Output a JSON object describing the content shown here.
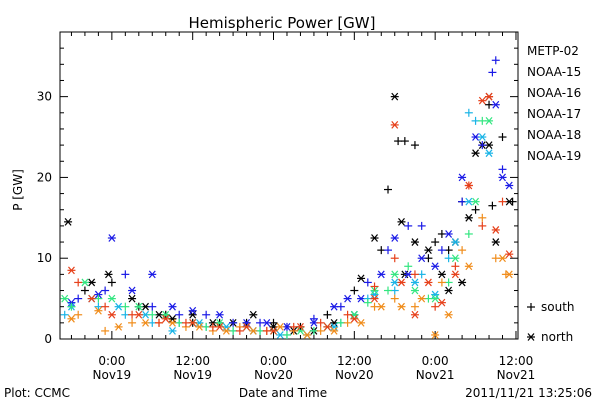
{
  "footer": {
    "plot_credit": "Plot: CCMC",
    "timestamp": "2011/11/21  13:25:06"
  },
  "chart_data": {
    "type": "scatter",
    "title": "Hemispheric Power [GW]",
    "xlabel": "Date and Time",
    "ylabel": "P [GW]",
    "x_unit": "hours since 2011/11/18 00:00",
    "xlim": [
      16.3,
      84.3
    ],
    "ylim": [
      0,
      38
    ],
    "y_ticks": [
      0,
      10,
      20,
      30
    ],
    "x_ticks": [
      {
        "x": 24,
        "top": "0:00",
        "bottom": "Nov19"
      },
      {
        "x": 36,
        "top": "12:00",
        "bottom": "Nov19"
      },
      {
        "x": 48,
        "top": "0:00",
        "bottom": "Nov20"
      },
      {
        "x": 60,
        "top": "12:00",
        "bottom": "Nov20"
      },
      {
        "x": 72,
        "top": "0:00",
        "bottom": "Nov21"
      },
      {
        "x": 84,
        "top": "12:00",
        "bottom": "Nov21"
      }
    ],
    "symbol_legend": [
      {
        "symbol": "+",
        "label": "south"
      },
      {
        "symbol": "*",
        "label": "north"
      }
    ],
    "series": [
      {
        "name": "METP-02",
        "color": "#000000",
        "north": [
          [
            17.5,
            14.5
          ],
          [
            21,
            7
          ],
          [
            23.5,
            8
          ],
          [
            27,
            5
          ],
          [
            29,
            4
          ],
          [
            31,
            3
          ],
          [
            33,
            2.5
          ],
          [
            36,
            3
          ],
          [
            39,
            2
          ],
          [
            42,
            2
          ],
          [
            45,
            3
          ],
          [
            48,
            1.5
          ],
          [
            51,
            1
          ],
          [
            54,
            1
          ],
          [
            57,
            2
          ],
          [
            60,
            3
          ],
          [
            61,
            7.5
          ],
          [
            63,
            12.5
          ],
          [
            66,
            30
          ],
          [
            67,
            14.5
          ],
          [
            69,
            12
          ],
          [
            71,
            11
          ],
          [
            73,
            8
          ],
          [
            75,
            12
          ],
          [
            77,
            15
          ],
          [
            78,
            23
          ],
          [
            79,
            24
          ],
          [
            80,
            24
          ],
          [
            81,
            12
          ],
          [
            83,
            17
          ],
          [
            67.5,
            8
          ],
          [
            74,
            6
          ],
          [
            76,
            7
          ]
        ],
        "south": [
          [
            20,
            6
          ],
          [
            24,
            7
          ],
          [
            28,
            4
          ],
          [
            32,
            3
          ],
          [
            36,
            2
          ],
          [
            40,
            2
          ],
          [
            44,
            2
          ],
          [
            48,
            2
          ],
          [
            52,
            1.5
          ],
          [
            56,
            3
          ],
          [
            60,
            6
          ],
          [
            64,
            11
          ],
          [
            65,
            18.5
          ],
          [
            66.5,
            24.5
          ],
          [
            67.5,
            24.5
          ],
          [
            69,
            24
          ],
          [
            71,
            10
          ],
          [
            72,
            12
          ],
          [
            73,
            13
          ],
          [
            74,
            11
          ],
          [
            76,
            17
          ],
          [
            78,
            16
          ],
          [
            80,
            29
          ],
          [
            82,
            25
          ],
          [
            80.5,
            16.5
          ],
          [
            83.5,
            17
          ]
        ]
      },
      {
        "name": "NOAA-15",
        "color": "#1a1ae6",
        "north": [
          [
            18,
            4.5
          ],
          [
            22,
            5.5
          ],
          [
            24,
            12.5
          ],
          [
            27,
            6
          ],
          [
            30,
            8
          ],
          [
            33,
            4
          ],
          [
            36,
            3.5
          ],
          [
            40,
            3
          ],
          [
            44,
            2
          ],
          [
            47,
            2
          ],
          [
            50,
            1.5
          ],
          [
            54,
            2
          ],
          [
            57,
            4
          ],
          [
            59,
            5
          ],
          [
            61,
            5
          ],
          [
            64,
            8
          ],
          [
            66,
            12.5
          ],
          [
            68,
            8
          ],
          [
            70,
            10
          ],
          [
            72,
            9
          ],
          [
            74,
            13
          ],
          [
            76,
            20
          ],
          [
            78,
            25
          ],
          [
            80,
            30
          ],
          [
            81,
            29
          ],
          [
            82,
            20
          ],
          [
            83,
            19
          ]
        ],
        "south": [
          [
            19,
            5
          ],
          [
            23,
            6
          ],
          [
            26,
            8
          ],
          [
            30,
            4
          ],
          [
            34,
            3
          ],
          [
            38,
            3
          ],
          [
            42,
            2
          ],
          [
            46,
            2
          ],
          [
            50,
            1.5
          ],
          [
            54,
            2.5
          ],
          [
            58,
            4
          ],
          [
            62,
            7
          ],
          [
            65,
            11
          ],
          [
            68,
            14
          ],
          [
            70,
            14
          ],
          [
            73,
            11
          ],
          [
            76,
            17
          ],
          [
            79,
            24
          ],
          [
            80.5,
            33
          ],
          [
            81,
            34.5
          ],
          [
            82,
            21
          ]
        ]
      },
      {
        "name": "NOAA-16",
        "color": "#1ab4e6",
        "north": [
          [
            18,
            4
          ],
          [
            21,
            5
          ],
          [
            25,
            4
          ],
          [
            29,
            3
          ],
          [
            33,
            1
          ],
          [
            37,
            2
          ],
          [
            41,
            1.5
          ],
          [
            45,
            1
          ],
          [
            49,
            0.5
          ],
          [
            53,
            0.5
          ],
          [
            57,
            1.5
          ],
          [
            60,
            3
          ],
          [
            63,
            5.5
          ],
          [
            66,
            7
          ],
          [
            69,
            7
          ],
          [
            72,
            5.5
          ],
          [
            75,
            12
          ],
          [
            77,
            17
          ],
          [
            79,
            25
          ],
          [
            80,
            23
          ]
        ],
        "south": [
          [
            17,
            3
          ],
          [
            22,
            4
          ],
          [
            26,
            3
          ],
          [
            30,
            2
          ],
          [
            34,
            2
          ],
          [
            38,
            1.5
          ],
          [
            42,
            1
          ],
          [
            46,
            1
          ],
          [
            50,
            0.5
          ],
          [
            54,
            1
          ],
          [
            58,
            2
          ],
          [
            62,
            5
          ],
          [
            66,
            6
          ],
          [
            70,
            8
          ],
          [
            74,
            10
          ],
          [
            77,
            28
          ],
          [
            78,
            27
          ]
        ]
      },
      {
        "name": "NOAA-17",
        "color": "#33e680",
        "north": [
          [
            17,
            5
          ],
          [
            20,
            7
          ],
          [
            24,
            5
          ],
          [
            28,
            4
          ],
          [
            32,
            3
          ],
          [
            36,
            2
          ],
          [
            40,
            2
          ],
          [
            44,
            1.5
          ],
          [
            48,
            1
          ],
          [
            52,
            1
          ],
          [
            56,
            1.5
          ],
          [
            60,
            3
          ],
          [
            63,
            6
          ],
          [
            66,
            8
          ],
          [
            69,
            6
          ],
          [
            72,
            5
          ],
          [
            75,
            10
          ],
          [
            78,
            17
          ],
          [
            80,
            27
          ]
        ],
        "south": [
          [
            18,
            4
          ],
          [
            22,
            5
          ],
          [
            26,
            4
          ],
          [
            30,
            3
          ],
          [
            34,
            2
          ],
          [
            38,
            1.5
          ],
          [
            42,
            1
          ],
          [
            46,
            1
          ],
          [
            50,
            0.5
          ],
          [
            54,
            1
          ],
          [
            58,
            2
          ],
          [
            62,
            4.5
          ],
          [
            65,
            6
          ],
          [
            68,
            9
          ],
          [
            71,
            5
          ],
          [
            74,
            7
          ],
          [
            77,
            13
          ],
          [
            79,
            27
          ]
        ]
      },
      {
        "name": "NOAA-18",
        "color": "#f08c1a",
        "north": [
          [
            18,
            2.5
          ],
          [
            22,
            3.5
          ],
          [
            25,
            1.5
          ],
          [
            29,
            2
          ],
          [
            33,
            2
          ],
          [
            37,
            1.5
          ],
          [
            41,
            1
          ],
          [
            45,
            1
          ],
          [
            49,
            1.5
          ],
          [
            53,
            0.5
          ],
          [
            57,
            1
          ],
          [
            61,
            2
          ],
          [
            64,
            4
          ],
          [
            67,
            4
          ],
          [
            70,
            5
          ],
          [
            72,
            0.5
          ],
          [
            74,
            3
          ],
          [
            77,
            9
          ],
          [
            80,
            30
          ],
          [
            82,
            10
          ],
          [
            83,
            8
          ]
        ],
        "south": [
          [
            19,
            3
          ],
          [
            23,
            1
          ],
          [
            27,
            2
          ],
          [
            31,
            2
          ],
          [
            35,
            1.5
          ],
          [
            39,
            1
          ],
          [
            43,
            1.5
          ],
          [
            47,
            1
          ],
          [
            51,
            1
          ],
          [
            55,
            1
          ],
          [
            59,
            2
          ],
          [
            63,
            4
          ],
          [
            66,
            5
          ],
          [
            69,
            4
          ],
          [
            73,
            7
          ],
          [
            76,
            11
          ],
          [
            79,
            15
          ],
          [
            81,
            10
          ],
          [
            82.5,
            8
          ]
        ]
      },
      {
        "name": "NOAA-19",
        "color": "#e6401a",
        "north": [
          [
            18,
            8.5
          ],
          [
            21,
            5
          ],
          [
            24,
            3
          ],
          [
            28,
            3
          ],
          [
            32,
            2.5
          ],
          [
            36,
            2
          ],
          [
            40,
            1.5
          ],
          [
            44,
            1.5
          ],
          [
            48,
            1
          ],
          [
            52,
            1.5
          ],
          [
            56,
            1.5
          ],
          [
            60,
            2.5
          ],
          [
            63,
            5
          ],
          [
            66,
            26.5
          ],
          [
            67,
            7
          ],
          [
            69,
            3
          ],
          [
            71,
            7
          ],
          [
            73,
            4.5
          ],
          [
            75,
            8
          ],
          [
            77,
            19
          ],
          [
            79,
            29.5
          ],
          [
            80,
            30
          ],
          [
            81,
            13.5
          ],
          [
            83,
            10.5
          ]
        ],
        "south": [
          [
            19,
            7
          ],
          [
            23,
            4
          ],
          [
            27,
            3
          ],
          [
            31,
            2
          ],
          [
            35,
            2
          ],
          [
            39,
            1.5
          ],
          [
            43,
            1
          ],
          [
            47,
            1
          ],
          [
            51,
            1.5
          ],
          [
            55,
            2
          ],
          [
            59,
            3
          ],
          [
            63,
            6.5
          ],
          [
            66,
            10
          ],
          [
            69,
            8
          ],
          [
            72,
            4
          ],
          [
            75,
            9
          ],
          [
            77,
            19
          ],
          [
            79,
            14
          ],
          [
            82,
            17
          ]
        ]
      }
    ]
  }
}
